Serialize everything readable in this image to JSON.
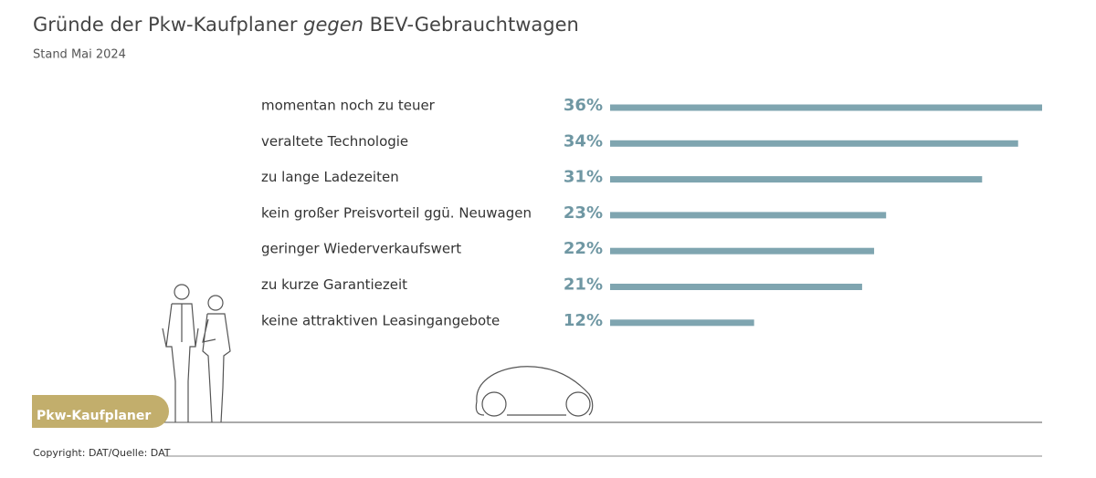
{
  "chart_data": {
    "type": "bar",
    "title": [
      {
        "text": "Gründe der Pkw-Kaufplaner "
      },
      {
        "text": "gegen",
        "italic": true
      },
      {
        "text": " BEV-Gebrauchtwagen"
      }
    ],
    "subtitle": "Stand Mai 2024",
    "categories": [
      "momentan noch zu teuer",
      "veraltete Technologie",
      "zu lange Ladezeiten",
      "kein großer Preisvorteil ggü. Neuwagen",
      "geringer Wiederverkaufswert",
      "zu kurze Garantiezeit",
      "keine attraktiven Leasingangebote"
    ],
    "values": [
      36,
      34,
      31,
      23,
      22,
      21,
      12
    ],
    "value_labels": [
      "36%",
      "34%",
      "31%",
      "23%",
      "22%",
      "21%",
      "12%"
    ],
    "color": "#7fa5b0",
    "badge": "Pkw-Kaufplaner",
    "footer": "Copyright: DAT/Quelle: DAT"
  }
}
